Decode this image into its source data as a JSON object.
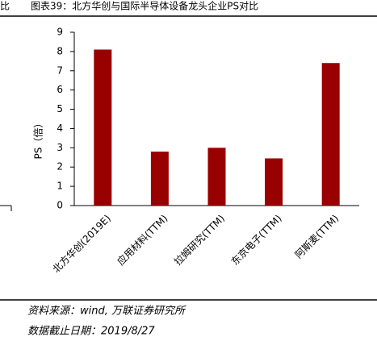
{
  "left_fragment": "比",
  "chart_data": {
    "type": "bar",
    "title": "图表39：北方华创与国际半导体设备龙头企业PS对比",
    "ylabel": "PS（倍）",
    "categories": [
      "北方华创(2019E)",
      "应用材料(TTM)",
      "拉姆研究(TTM)",
      "东京电子(TTM)",
      "阿斯麦(TTM)"
    ],
    "values": [
      8.1,
      2.8,
      3.0,
      2.45,
      7.4
    ],
    "color": "#990000",
    "ylim": [
      0,
      9
    ],
    "yticks": [
      0,
      1,
      2,
      3,
      4,
      5,
      6,
      7,
      8,
      9
    ],
    "grid": false
  },
  "footer": {
    "source": "资料来源：wind, 万联证券研究所",
    "date": "数据截止日期：2019/8/27"
  }
}
